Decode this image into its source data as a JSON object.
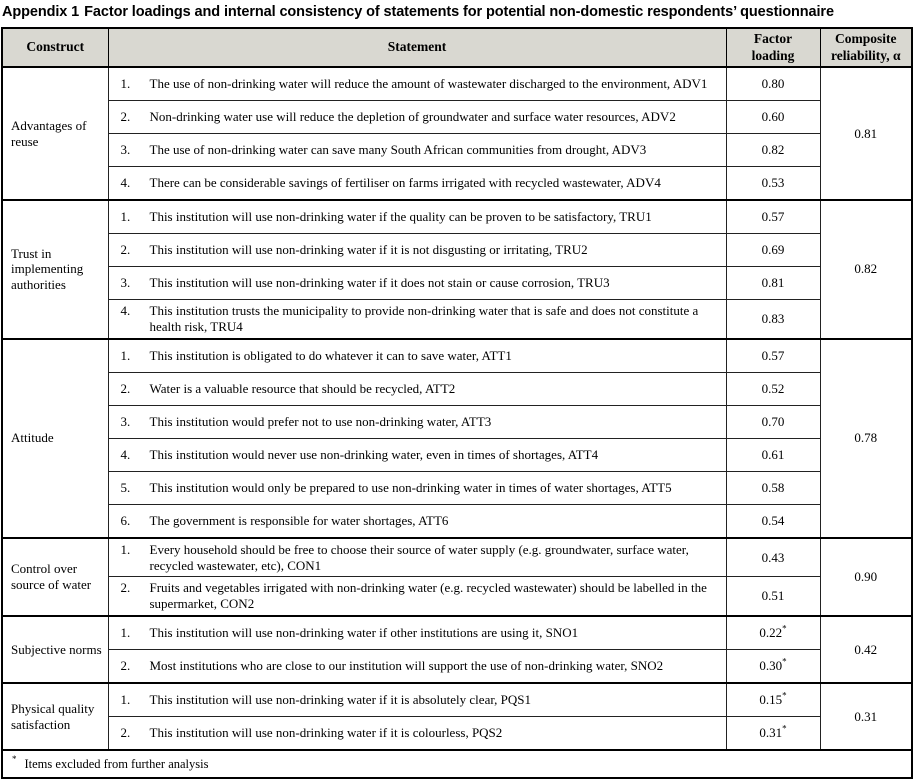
{
  "title": {
    "prefix": "Appendix 1",
    "text": "Factor loadings and internal consistency of statements for potential non-domestic respondents’ questionnaire"
  },
  "table": {
    "headers": {
      "construct": "Construct",
      "statement": "Statement",
      "factor_loading": "Factor loading",
      "composite_reliability": "Composite reliability, α"
    },
    "sections": [
      {
        "construct": "Advantages of reuse",
        "composite_reliability": "0.81",
        "items": [
          {
            "num": "1.",
            "text": "The use of non-drinking water will reduce the amount of wastewater discharged to the environment, ADV1",
            "loading": "0.80",
            "excluded": false
          },
          {
            "num": "2.",
            "text": "Non-drinking water use will reduce the depletion of groundwater and surface water resources, ADV2",
            "loading": "0.60",
            "excluded": false
          },
          {
            "num": "3.",
            "text": "The use of non-drinking water can save many South African communities from drought, ADV3",
            "loading": "0.82",
            "excluded": false
          },
          {
            "num": "4.",
            "text": "There can be considerable savings of fertiliser on farms irrigated with recycled wastewater, ADV4",
            "loading": "0.53",
            "excluded": false
          }
        ]
      },
      {
        "construct": "Trust in implementing authorities",
        "composite_reliability": "0.82",
        "items": [
          {
            "num": "1.",
            "text": "This institution will use non-drinking water if the quality can be proven to be satisfactory, TRU1",
            "loading": "0.57",
            "excluded": false
          },
          {
            "num": "2.",
            "text": "This institution will use non-drinking water if it is not disgusting or irritating, TRU2",
            "loading": "0.69",
            "excluded": false
          },
          {
            "num": "3.",
            "text": "This institution will use non-drinking water if it does not stain or cause corrosion, TRU3",
            "loading": "0.81",
            "excluded": false
          },
          {
            "num": "4.",
            "text": "This institution trusts the municipality to provide non-drinking water that is safe and does not constitute a health risk, TRU4",
            "loading": "0.83",
            "excluded": false
          }
        ]
      },
      {
        "construct": "Attitude",
        "composite_reliability": "0.78",
        "items": [
          {
            "num": "1.",
            "text": "This institution is obligated to do whatever it can to save water, ATT1",
            "loading": "0.57",
            "excluded": false
          },
          {
            "num": "2.",
            "text": "Water is a valuable resource that should be recycled, ATT2",
            "loading": "0.52",
            "excluded": false
          },
          {
            "num": "3.",
            "text": "This institution would prefer not to use non-drinking water, ATT3",
            "loading": "0.70",
            "excluded": false
          },
          {
            "num": "4.",
            "text": "This institution would never use non-drinking water, even in times of shortages, ATT4",
            "loading": "0.61",
            "excluded": false
          },
          {
            "num": "5.",
            "text": "This institution would only be prepared to use non-drinking water in times of water shortages, ATT5",
            "loading": "0.58",
            "excluded": false
          },
          {
            "num": "6.",
            "text": "The government is responsible for water shortages, ATT6",
            "loading": "0.54",
            "excluded": false
          }
        ]
      },
      {
        "construct": "Control over source of water",
        "composite_reliability": "0.90",
        "items": [
          {
            "num": "1.",
            "text": "Every household should be free to choose their source of water supply (e.g. groundwater, surface water, recycled wastewater, etc), CON1",
            "loading": "0.43",
            "excluded": false
          },
          {
            "num": "2.",
            "text": "Fruits and vegetables irrigated with non-drinking water (e.g. recycled wastewater) should be labelled in the supermarket, CON2",
            "loading": "0.51",
            "excluded": false
          }
        ]
      },
      {
        "construct": "Subjective norms",
        "composite_reliability": "0.42",
        "items": [
          {
            "num": "1.",
            "text": "This institution will use non-drinking water if other institutions are using it, SNO1",
            "loading": "0.22",
            "excluded": true
          },
          {
            "num": "2.",
            "text": "Most institutions who are close to our institution will support the use of non-drinking water, SNO2",
            "loading": "0.30",
            "excluded": true
          }
        ]
      },
      {
        "construct": "Physical quality satisfaction",
        "composite_reliability": "0.31",
        "items": [
          {
            "num": "1.",
            "text": "This institution will use non-drinking water if it is absolutely clear, PQS1",
            "loading": "0.15",
            "excluded": true
          },
          {
            "num": "2.",
            "text": "This institution will use non-drinking water if it is colourless, PQS2",
            "loading": "0.31",
            "excluded": true
          }
        ]
      }
    ],
    "footnote": {
      "marker": "*",
      "text": "Items excluded from further analysis"
    }
  },
  "colors": {
    "header_bg": "#d9d8d1",
    "border_strong": "#000000",
    "border_light": "#222222",
    "text": "#000000"
  }
}
